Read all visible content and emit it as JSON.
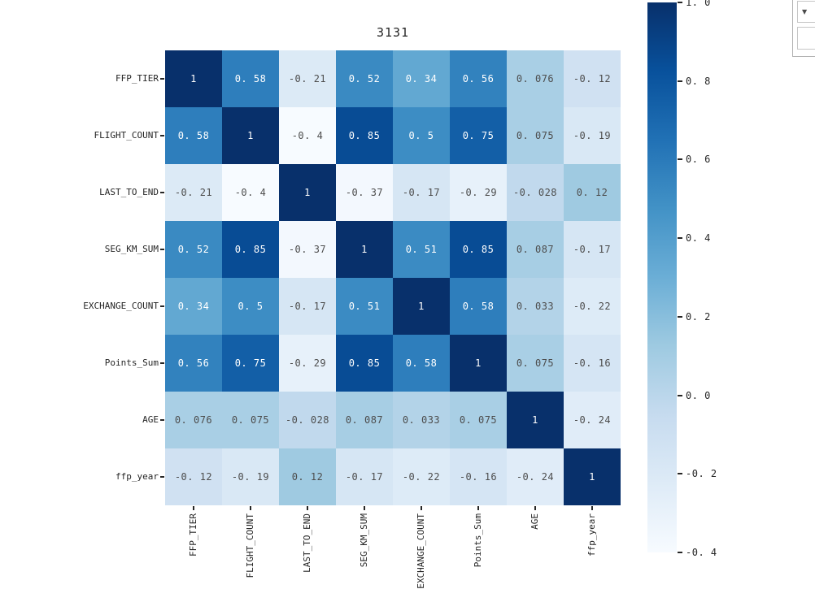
{
  "chart_data": {
    "type": "heatmap",
    "title": "3131",
    "categories": [
      "FFP_TIER",
      "FLIGHT_COUNT",
      "LAST_TO_END",
      "SEG_KM_SUM",
      "EXCHANGE_COUNT",
      "Points_Sum",
      "AGE",
      "ffp_year"
    ],
    "matrix": [
      [
        1,
        0.58,
        -0.21,
        0.52,
        0.34,
        0.56,
        0.076,
        -0.12
      ],
      [
        0.58,
        1,
        -0.4,
        0.85,
        0.5,
        0.75,
        0.075,
        -0.19
      ],
      [
        -0.21,
        -0.4,
        1,
        -0.37,
        -0.17,
        -0.29,
        -0.028,
        0.12
      ],
      [
        0.52,
        0.85,
        -0.37,
        1,
        0.51,
        0.85,
        0.087,
        -0.17
      ],
      [
        0.34,
        0.5,
        -0.17,
        0.51,
        1,
        0.58,
        0.033,
        -0.22
      ],
      [
        0.56,
        0.75,
        -0.29,
        0.85,
        0.58,
        1,
        0.075,
        -0.16
      ],
      [
        0.076,
        0.075,
        -0.028,
        0.087,
        0.033,
        0.075,
        1,
        -0.24
      ],
      [
        -0.12,
        -0.19,
        0.12,
        -0.17,
        -0.22,
        -0.16,
        -0.24,
        1
      ]
    ],
    "cell_labels": [
      [
        "1",
        "0. 58",
        "-0. 21",
        "0. 52",
        "0. 34",
        "0. 56",
        "0. 076",
        "-0. 12"
      ],
      [
        "0. 58",
        "1",
        "-0. 4",
        "0. 85",
        "0. 5",
        "0. 75",
        "0. 075",
        "-0. 19"
      ],
      [
        "-0. 21",
        "-0. 4",
        "1",
        "-0. 37",
        "-0. 17",
        "-0. 29",
        "-0. 028",
        "0. 12"
      ],
      [
        "0. 52",
        "0. 85",
        "-0. 37",
        "1",
        "0. 51",
        "0. 85",
        "0. 087",
        "-0. 17"
      ],
      [
        "0. 34",
        "0. 5",
        "-0. 17",
        "0. 51",
        "1",
        "0. 58",
        "0. 033",
        "-0. 22"
      ],
      [
        "0. 56",
        "0. 75",
        "-0. 29",
        "0. 85",
        "0. 58",
        "1",
        "0. 075",
        "-0. 16"
      ],
      [
        "0. 076",
        "0. 075",
        "-0. 028",
        "0. 087",
        "0. 033",
        "0. 075",
        "1",
        "-0. 24"
      ],
      [
        "-0. 12",
        "-0. 19",
        "0. 12",
        "-0. 17",
        "-0. 22",
        "-0. 16",
        "-0. 24",
        "1"
      ]
    ],
    "colormap": "Blues",
    "colormap_anchors": [
      "#f7fbff",
      "#deebf7",
      "#c6dbef",
      "#9ecae1",
      "#6baed6",
      "#4292c6",
      "#2171b5",
      "#08519c",
      "#08306b"
    ],
    "vmin": -0.4,
    "vmax": 1.0,
    "colorbar": {
      "tick_labels": [
        "1. 0",
        "0. 8",
        "0. 6",
        "0. 4",
        "0. 2",
        "0. 0",
        "-0. 2",
        "-0. 4"
      ],
      "tick_values": [
        1.0,
        0.8,
        0.6,
        0.4,
        0.2,
        0.0,
        -0.2,
        -0.4
      ]
    },
    "text_color_on_dark": "#ffffff",
    "text_color_on_light": "#4d4d4d",
    "white_text_threshold": 0.3,
    "legend_position": "right",
    "grid": false
  },
  "output_controls": {
    "dropdown_icon": "▼"
  }
}
